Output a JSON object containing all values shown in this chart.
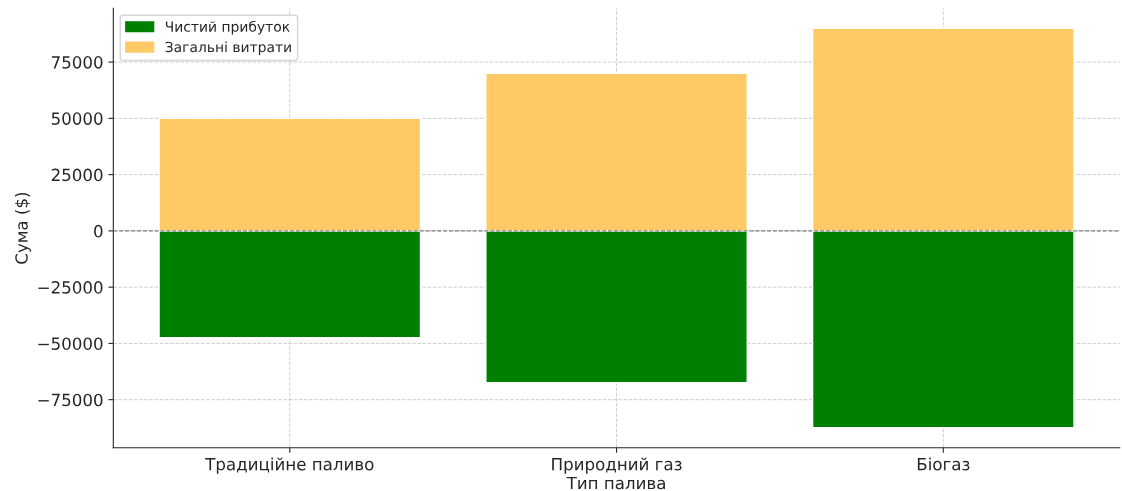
{
  "chart_data": {
    "type": "bar",
    "xlabel": "Тип палива",
    "ylabel": "Сума ($)",
    "categories": [
      "Традиційне паливо",
      "Природний газ",
      "Біогаз"
    ],
    "series": [
      {
        "name": "Чистий прибуток",
        "color": "#008000",
        "values": [
          -47500,
          -67500,
          -87500
        ]
      },
      {
        "name": "Загальні витрати",
        "color": "#ffc966",
        "values": [
          50000,
          70000,
          90000
        ]
      }
    ],
    "ylim": [
      -96375,
      98875
    ],
    "yticks": [
      {
        "value": -75000,
        "label": "−75000"
      },
      {
        "value": -50000,
        "label": "−50000"
      },
      {
        "value": -25000,
        "label": "−25000"
      },
      0,
      25000,
      50000,
      75000
    ],
    "ref_lines": [
      {
        "axis": "y",
        "value": 0,
        "color": "#808080",
        "line_style": "dashed"
      }
    ],
    "stacked": true,
    "grid": true,
    "legend": "top left"
  }
}
